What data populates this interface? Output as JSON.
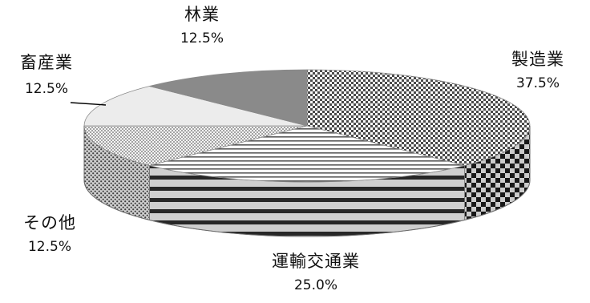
{
  "chart_data": {
    "type": "pie",
    "three_d": true,
    "categories": [
      "製造業",
      "運輸交通業",
      "その他",
      "畜産業",
      "林業"
    ],
    "values": [
      37.5,
      25.0,
      12.5,
      12.5,
      12.5
    ],
    "labels": [
      "37.5%",
      "25.0%",
      "12.5%",
      "12.5%",
      "12.5%"
    ],
    "legend": "none",
    "fills": [
      "checker",
      "stripes",
      "dots",
      "light-solid",
      "dark-solid"
    ],
    "colors": {
      "manufacturing": "#9a9a9a",
      "transport": "#e0e0e0",
      "other": "#c8c8c8",
      "livestock": "#ececec",
      "forestry": "#8a8a8a"
    }
  }
}
